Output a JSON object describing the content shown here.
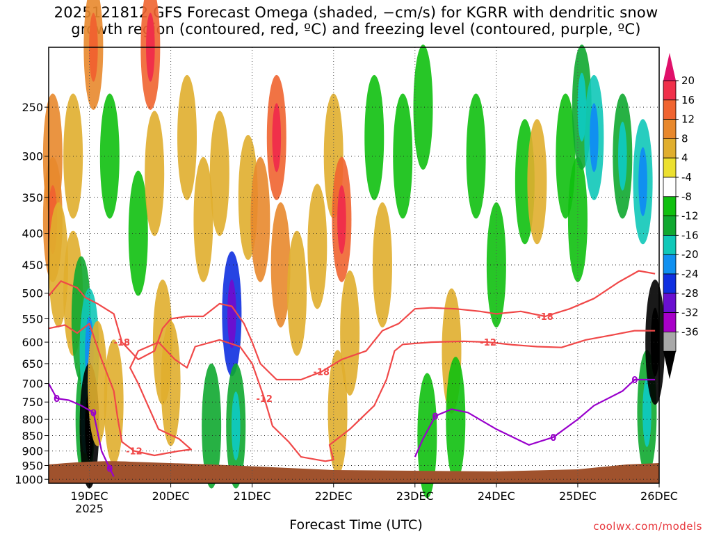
{
  "title_lines": [
    "2025121812 GFS Forecast Omega (shaded, −cm/s) for KGRR with dendritic snow",
    "growth region (contoured, red, ºC) and freezing level (contoured, purple, ºC)"
  ],
  "xlabel": "Forecast Time (UTC)",
  "credit": "coolwx.com/models",
  "chart_data": {
    "type": "heatmap",
    "title": "2025121812 GFS Forecast Omega (shaded, −cm/s) for KGRR with dendritic snow growth region (contoured, red, ºC) and freezing level (contoured, purple, ºC)",
    "xlabel": "Forecast Time (UTC)",
    "ylabel": "",
    "x_ticks": [
      {
        "label": "19DEC",
        "sub": "2025",
        "t": 1.0
      },
      {
        "label": "20DEC",
        "sub": "",
        "t": 2.0
      },
      {
        "label": "21DEC",
        "sub": "",
        "t": 3.0
      },
      {
        "label": "22DEC",
        "sub": "",
        "t": 4.0
      },
      {
        "label": "23DEC",
        "sub": "",
        "t": 5.0
      },
      {
        "label": "24DEC",
        "sub": "",
        "t": 6.0
      },
      {
        "label": "25DEC",
        "sub": "",
        "t": 7.0
      },
      {
        "label": "26DEC",
        "sub": "",
        "t": 8.0
      }
    ],
    "xlim_days_from_18dec00z": [
      0.5,
      8.0
    ],
    "y_ticks": [
      250,
      300,
      350,
      400,
      450,
      500,
      550,
      600,
      650,
      700,
      750,
      800,
      850,
      900,
      950,
      1000
    ],
    "ylim_hpa": [
      200,
      1015
    ],
    "y_scale": "log-pressure",
    "grid": true,
    "colorbar": {
      "labels": [
        "20",
        "16",
        "12",
        "8",
        "4",
        "-4",
        "-8",
        "-12",
        "-16",
        "-20",
        "-24",
        "-28",
        "-32",
        "-36"
      ],
      "colors": [
        "#f0304a",
        "#f06430",
        "#e8882c",
        "#e0ae2e",
        "#ece030",
        "#ffffff",
        "#10c010",
        "#10a830",
        "#10c8b8",
        "#1090f0",
        "#1030e0",
        "#6a10d0",
        "#a800c8",
        "#a8a8a8"
      ],
      "top_arrow_color": "#e0106a",
      "bottom_arrow_color": "#000000"
    },
    "omega_cells": [
      {
        "t": 0.55,
        "p": 300,
        "v": 10
      },
      {
        "t": 0.55,
        "p": 380,
        "v": 12
      },
      {
        "t": 0.62,
        "p": 450,
        "v": 6
      },
      {
        "t": 0.8,
        "p": 300,
        "v": 6
      },
      {
        "t": 0.8,
        "p": 500,
        "v": 6
      },
      {
        "t": 0.9,
        "p": 550,
        "v": -10
      },
      {
        "t": 0.95,
        "p": 800,
        "v": -12
      },
      {
        "t": 1.0,
        "p": 620,
        "v": -14
      },
      {
        "t": 1.0,
        "p": 820,
        "v": -36
      },
      {
        "t": 1.05,
        "p": 200,
        "v": 12
      },
      {
        "t": 1.1,
        "p": 700,
        "v": 8
      },
      {
        "t": 1.25,
        "p": 300,
        "v": -8
      },
      {
        "t": 1.3,
        "p": 750,
        "v": 6
      },
      {
        "t": 1.6,
        "p": 400,
        "v": -8
      },
      {
        "t": 1.75,
        "p": 200,
        "v": 14
      },
      {
        "t": 1.8,
        "p": 320,
        "v": 8
      },
      {
        "t": 1.9,
        "p": 600,
        "v": 6
      },
      {
        "t": 2.0,
        "p": 700,
        "v": 6
      },
      {
        "t": 2.2,
        "p": 280,
        "v": 6
      },
      {
        "t": 2.4,
        "p": 380,
        "v": 6
      },
      {
        "t": 2.5,
        "p": 820,
        "v": -10
      },
      {
        "t": 2.6,
        "p": 320,
        "v": 8
      },
      {
        "t": 2.75,
        "p": 540,
        "v": -22
      },
      {
        "t": 2.8,
        "p": 820,
        "v": -12
      },
      {
        "t": 2.95,
        "p": 350,
        "v": 6
      },
      {
        "t": 3.1,
        "p": 380,
        "v": 10
      },
      {
        "t": 3.3,
        "p": 280,
        "v": 16
      },
      {
        "t": 3.35,
        "p": 450,
        "v": 10
      },
      {
        "t": 3.55,
        "p": 500,
        "v": 6
      },
      {
        "t": 3.8,
        "p": 420,
        "v": 6
      },
      {
        "t": 4.0,
        "p": 300,
        "v": 8
      },
      {
        "t": 4.1,
        "p": 380,
        "v": 14
      },
      {
        "t": 4.2,
        "p": 580,
        "v": 8
      },
      {
        "t": 4.05,
        "p": 780,
        "v": 6
      },
      {
        "t": 4.5,
        "p": 280,
        "v": -8
      },
      {
        "t": 4.6,
        "p": 450,
        "v": 6
      },
      {
        "t": 4.85,
        "p": 300,
        "v": -8
      },
      {
        "t": 5.1,
        "p": 250,
        "v": -8
      },
      {
        "t": 5.15,
        "p": 850,
        "v": -8
      },
      {
        "t": 5.45,
        "p": 620,
        "v": 6
      },
      {
        "t": 5.5,
        "p": 800,
        "v": -8
      },
      {
        "t": 5.75,
        "p": 300,
        "v": -8
      },
      {
        "t": 6.0,
        "p": 450,
        "v": -8
      },
      {
        "t": 6.35,
        "p": 330,
        "v": -8
      },
      {
        "t": 6.5,
        "p": 330,
        "v": 8
      },
      {
        "t": 6.85,
        "p": 300,
        "v": -8
      },
      {
        "t": 7.0,
        "p": 380,
        "v": -8
      },
      {
        "t": 7.05,
        "p": 250,
        "v": -12
      },
      {
        "t": 7.2,
        "p": 280,
        "v": -14
      },
      {
        "t": 7.55,
        "p": 300,
        "v": -12
      },
      {
        "t": 7.8,
        "p": 330,
        "v": -16
      },
      {
        "t": 7.85,
        "p": 780,
        "v": -12
      },
      {
        "t": 7.95,
        "p": 600,
        "v": -36
      }
    ],
    "contours": [
      {
        "level": -18,
        "label": "-18",
        "color": "#f04848",
        "points": [
          [
            0.5,
            505
          ],
          [
            0.65,
            478
          ],
          [
            0.85,
            490
          ],
          [
            0.95,
            508
          ],
          [
            1.1,
            520
          ],
          [
            1.3,
            540
          ],
          [
            1.4,
            600
          ],
          [
            1.6,
            640
          ],
          [
            1.8,
            620
          ],
          [
            1.9,
            570
          ],
          [
            2.0,
            550
          ],
          [
            2.2,
            545
          ],
          [
            2.4,
            545
          ],
          [
            2.6,
            520
          ],
          [
            2.75,
            525
          ],
          [
            2.9,
            560
          ],
          [
            3.0,
            600
          ],
          [
            3.1,
            650
          ],
          [
            3.3,
            690
          ],
          [
            3.6,
            690
          ],
          [
            3.85,
            670
          ],
          [
            4.1,
            640
          ],
          [
            4.4,
            620
          ],
          [
            4.6,
            575
          ],
          [
            4.8,
            560
          ],
          [
            5.0,
            530
          ],
          [
            5.2,
            528
          ],
          [
            5.5,
            530
          ],
          [
            5.8,
            535
          ],
          [
            6.0,
            540
          ],
          [
            6.3,
            535
          ],
          [
            6.6,
            545
          ],
          [
            6.9,
            530
          ],
          [
            7.2,
            510
          ],
          [
            7.5,
            480
          ],
          [
            7.75,
            460
          ],
          [
            7.95,
            465
          ]
        ]
      },
      {
        "level": -12,
        "label": "-12",
        "color": "#f04848",
        "points": [
          [
            0.5,
            570
          ],
          [
            0.7,
            563
          ],
          [
            0.85,
            580
          ],
          [
            1.0,
            560
          ],
          [
            1.15,
            640
          ],
          [
            1.3,
            720
          ],
          [
            1.35,
            800
          ],
          [
            1.4,
            870
          ],
          [
            1.55,
            900
          ],
          [
            1.8,
            915
          ],
          [
            2.1,
            900
          ],
          [
            2.25,
            895
          ],
          [
            2.1,
            860
          ],
          [
            1.85,
            830
          ],
          [
            1.7,
            750
          ],
          [
            1.6,
            700
          ],
          [
            1.5,
            660
          ],
          [
            1.6,
            620
          ],
          [
            1.85,
            600
          ],
          [
            2.05,
            640
          ],
          [
            2.2,
            660
          ],
          [
            2.3,
            610
          ],
          [
            2.6,
            595
          ],
          [
            2.85,
            610
          ],
          [
            3.0,
            650
          ],
          [
            3.15,
            740
          ],
          [
            3.25,
            820
          ],
          [
            3.45,
            870
          ],
          [
            3.6,
            920
          ],
          [
            3.9,
            935
          ],
          [
            4.0,
            930
          ],
          [
            3.95,
            880
          ],
          [
            4.2,
            830
          ],
          [
            4.5,
            760
          ],
          [
            4.65,
            690
          ],
          [
            4.75,
            620
          ],
          [
            4.85,
            605
          ],
          [
            5.2,
            600
          ],
          [
            5.6,
            598
          ],
          [
            5.9,
            600
          ],
          [
            6.2,
            606
          ],
          [
            6.5,
            610
          ],
          [
            6.8,
            612
          ],
          [
            7.1,
            595
          ],
          [
            7.4,
            585
          ],
          [
            7.7,
            575
          ],
          [
            7.95,
            575
          ]
        ]
      },
      {
        "level": 0,
        "label": "0",
        "color": "#9900cc",
        "points": [
          [
            0.5,
            700
          ],
          [
            0.6,
            740
          ],
          [
            0.75,
            745
          ],
          [
            0.9,
            760
          ],
          [
            1.05,
            780
          ],
          [
            1.15,
            900
          ],
          [
            1.25,
            960
          ],
          [
            1.3,
            990
          ]
        ]
      },
      {
        "level": 0,
        "label": "0",
        "color": "#9900cc",
        "points": [
          [
            5.0,
            920
          ],
          [
            5.1,
            860
          ],
          [
            5.25,
            790
          ],
          [
            5.45,
            770
          ],
          [
            5.65,
            780
          ],
          [
            6.0,
            830
          ],
          [
            6.4,
            880
          ],
          [
            6.7,
            855
          ],
          [
            7.0,
            800
          ],
          [
            7.2,
            760
          ],
          [
            7.55,
            720
          ],
          [
            7.7,
            690
          ],
          [
            7.95,
            690
          ]
        ]
      }
    ]
  }
}
